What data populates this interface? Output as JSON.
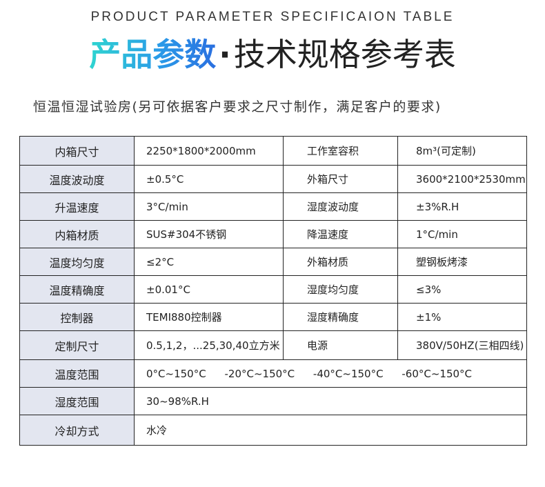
{
  "header": {
    "english_title": "PRODUCT PARAMETER SPECIFICAION TABLE",
    "title_highlight": "产品参数",
    "title_separator": "·",
    "title_rest": "技术规格参考表",
    "subtitle": "恒温恒湿试验房(另可依据客户要求之尺寸制作，满足客户的要求)"
  },
  "colors": {
    "gradient_start": "#2fd5d0",
    "gradient_end": "#2a6fe0",
    "label_bg": "#e3e6f0",
    "border": "#222222"
  },
  "table": {
    "pair_rows": [
      {
        "label1": "内箱尺寸",
        "value1": "2250*1800*2000mm",
        "label2": "工作室容积",
        "value2": "8m³(可定制)"
      },
      {
        "label1": "温度波动度",
        "value1": "±0.5°C",
        "label2": "外箱尺寸",
        "value2": "3600*2100*2530mm"
      },
      {
        "label1": "升温速度",
        "value1": "3°C/min",
        "label2": "湿度波动度",
        "value2": "±3%R.H"
      },
      {
        "label1": "内箱材质",
        "value1": "SUS#304不锈钢",
        "label2": "降温速度",
        "value2": "1°C/min"
      },
      {
        "label1": "温度均匀度",
        "value1": "≤2°C",
        "label2": "外箱材质",
        "value2": "塑钢板烤漆"
      },
      {
        "label1": "温度精确度",
        "value1": "±0.01°C",
        "label2": "湿度均匀度",
        "value2": "≤3%"
      },
      {
        "label1": "控制器",
        "value1": "TEMI880控制器",
        "label2": "湿度精确度",
        "value2": "±1%"
      },
      {
        "label1": "定制尺寸",
        "value1": "0.5,1,2，...25,30,40立方米",
        "label2": "电源",
        "value2": "380V/50HZ(三相四线)"
      }
    ],
    "temp_range": {
      "label": "温度范围",
      "options": [
        "0°C~150°C",
        "-20°C~150°C",
        "-40°C~150°C",
        "-60°C~150°C"
      ]
    },
    "humidity_range": {
      "label": "湿度范围",
      "value": "30~98%R.H"
    },
    "cooling": {
      "label": "冷却方式",
      "value": "水冷"
    }
  }
}
